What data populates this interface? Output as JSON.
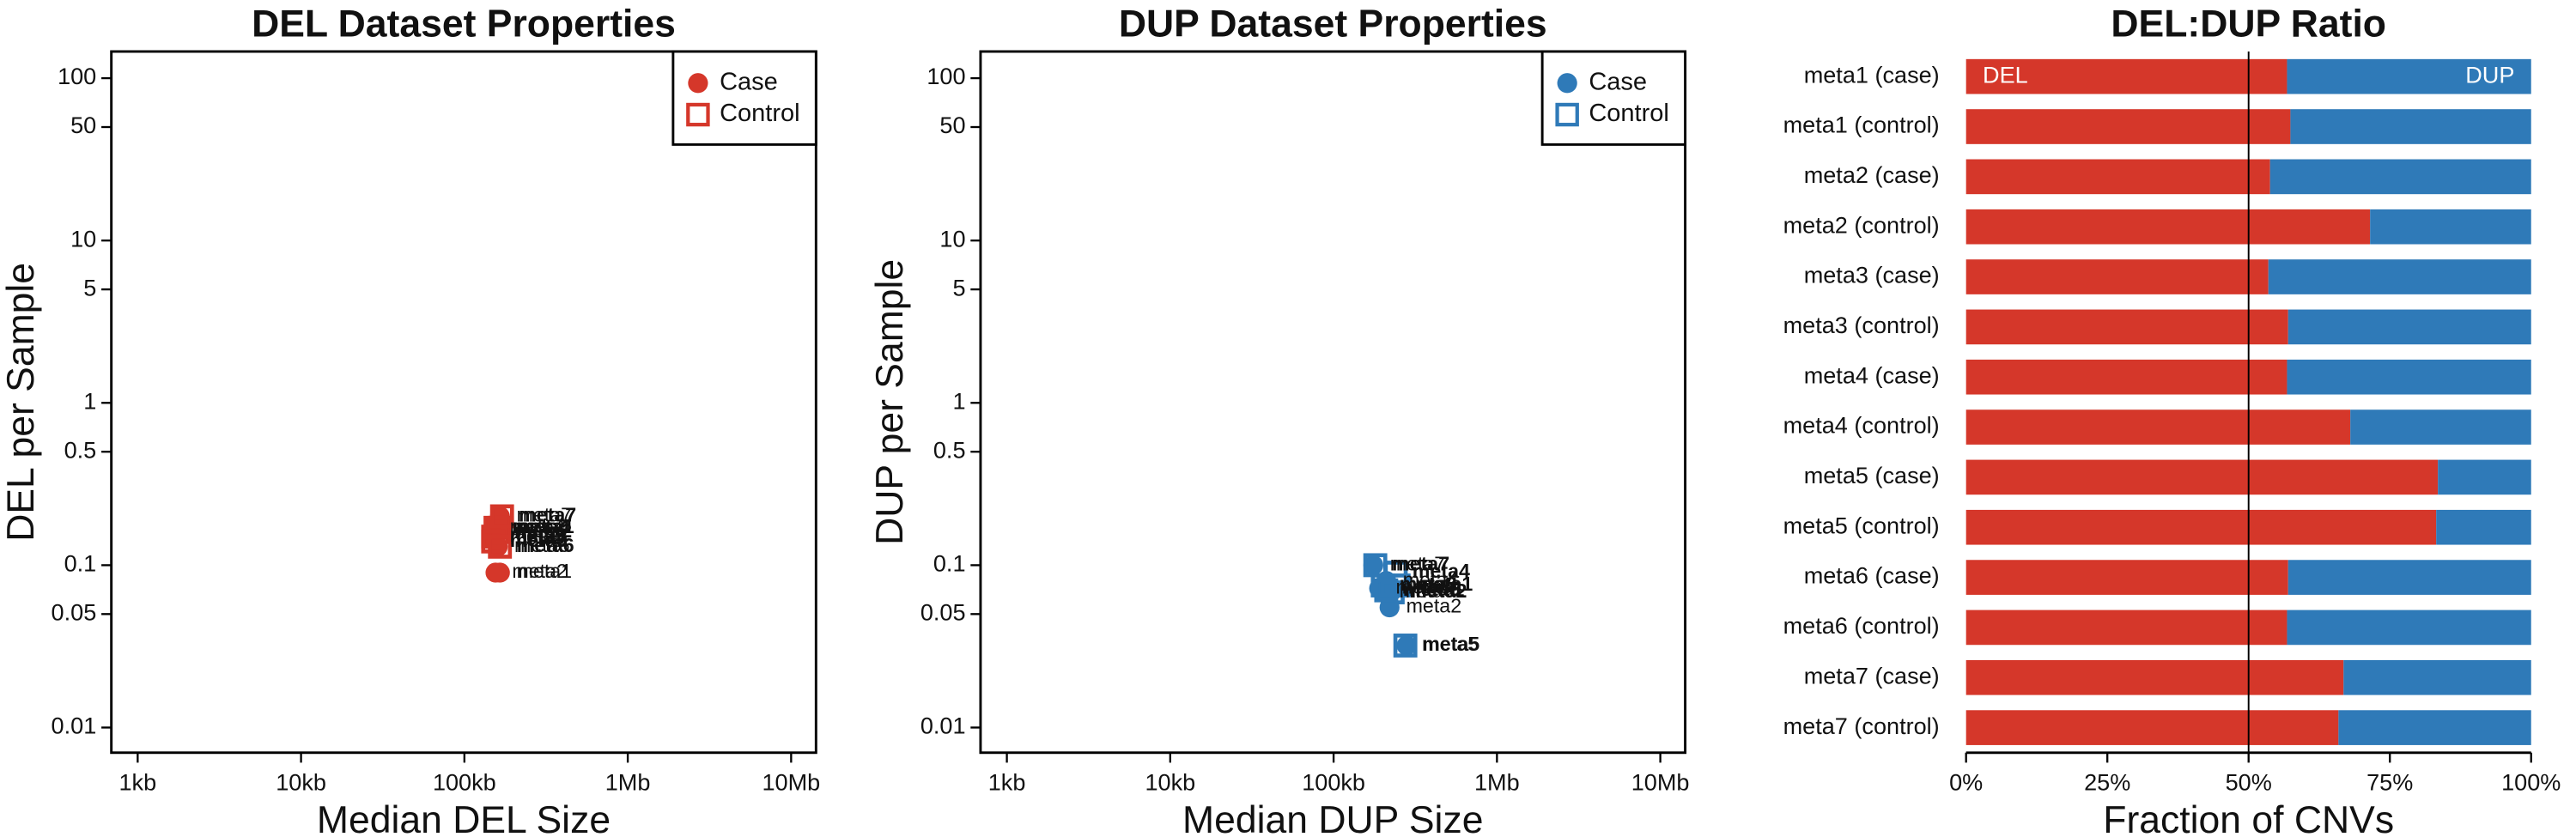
{
  "chart_data": [
    {
      "type": "scatter",
      "title": "DEL Dataset Properties",
      "xlabel": "Median DEL Size",
      "ylabel": "DEL per Sample",
      "xscale": "log",
      "yscale": "log",
      "xlim": [
        690,
        14200000
      ],
      "ylim": [
        0.007,
        146
      ],
      "xticks": [
        {
          "value": 1000,
          "label": "1kb"
        },
        {
          "value": 10000,
          "label": "10kb"
        },
        {
          "value": 100000,
          "label": "100kb"
        },
        {
          "value": 1000000,
          "label": "1Mb"
        },
        {
          "value": 10000000,
          "label": "10Mb"
        }
      ],
      "yticks": [
        0.01,
        0.05,
        0.1,
        0.5,
        1,
        5,
        10,
        50,
        100
      ],
      "legend": "upper right",
      "series": [
        {
          "name": "Case",
          "marker": "circle",
          "color": "#d5372a",
          "labels": [
            "meta1",
            "meta2",
            "meta3",
            "meta4",
            "meta5",
            "meta6",
            "meta7"
          ],
          "x": [
            165000,
            155000,
            150000,
            150000,
            150000,
            160000,
            165000
          ],
          "values": [
            0.09,
            0.09,
            0.15,
            0.17,
            0.145,
            0.13,
            0.2
          ]
        },
        {
          "name": "Control",
          "marker": "square",
          "color": "#d5372a",
          "labels": [
            "meta1",
            "meta2",
            "meta3",
            "meta4",
            "meta5",
            "meta6",
            "meta7"
          ],
          "x": [
            165000,
            160000,
            150000,
            155000,
            150000,
            165000,
            170000
          ],
          "values": [
            0.17,
            0.16,
            0.15,
            0.17,
            0.14,
            0.13,
            0.2
          ]
        }
      ]
    },
    {
      "type": "scatter",
      "title": "DUP Dataset Properties",
      "xlabel": "Median DUP Size",
      "ylabel": "DUP per Sample",
      "xscale": "log",
      "yscale": "log",
      "xlim": [
        690,
        14200000
      ],
      "ylim": [
        0.007,
        146
      ],
      "xticks": [
        {
          "value": 1000,
          "label": "1kb"
        },
        {
          "value": 10000,
          "label": "10kb"
        },
        {
          "value": 100000,
          "label": "100kb"
        },
        {
          "value": 1000000,
          "label": "1Mb"
        },
        {
          "value": 10000000,
          "label": "10Mb"
        }
      ],
      "yticks": [
        0.01,
        0.05,
        0.1,
        0.5,
        1,
        5,
        10,
        50,
        100
      ],
      "legend": "upper right",
      "series": [
        {
          "name": "Case",
          "marker": "circle",
          "color": "#2f7ab8",
          "labels": [
            "meta1",
            "meta2",
            "meta3",
            "meta4",
            "meta5",
            "meta6",
            "meta7"
          ],
          "x": [
            230000,
            220000,
            190000,
            210000,
            280000,
            200000,
            175000
          ],
          "values": [
            0.07,
            0.055,
            0.072,
            0.08,
            0.032,
            0.068,
            0.1
          ]
        },
        {
          "name": "Control",
          "marker": "square",
          "color": "#2f7ab8",
          "labels": [
            "meta1",
            "meta2",
            "meta3",
            "meta4",
            "meta5",
            "meta6",
            "meta7"
          ],
          "x": [
            250000,
            230000,
            200000,
            240000,
            275000,
            210000,
            180000
          ],
          "values": [
            0.075,
            0.068,
            0.075,
            0.09,
            0.032,
            0.07,
            0.1
          ]
        }
      ]
    },
    {
      "type": "stacked_barh",
      "title": "DEL:DUP Ratio",
      "xlabel": "Fraction of CNVs",
      "categories": [
        "meta1 (case)",
        "meta1 (control)",
        "meta2 (case)",
        "meta2 (control)",
        "meta3 (case)",
        "meta3 (control)",
        "meta4 (case)",
        "meta4 (control)",
        "meta5 (case)",
        "meta5 (control)",
        "meta6 (case)",
        "meta6 (control)",
        "meta7 (case)",
        "meta7 (control)"
      ],
      "xlim": [
        0,
        100
      ],
      "xticks": [
        {
          "value": 0,
          "label": "0%"
        },
        {
          "value": 25,
          "label": "25%"
        },
        {
          "value": 50,
          "label": "50%"
        },
        {
          "value": 75,
          "label": "75%"
        },
        {
          "value": 100,
          "label": "100%"
        }
      ],
      "vline": 50,
      "series": [
        {
          "name": "DEL",
          "color": "#d5372a",
          "values": [
            56.8,
            57.4,
            53.8,
            71.5,
            53.5,
            57,
            56.8,
            68,
            83.5,
            83.2,
            57,
            56.8,
            66.8,
            65.9
          ]
        },
        {
          "name": "DUP",
          "color": "#2f7ab8",
          "values": [
            43.2,
            42.6,
            46.2,
            28.5,
            46.5,
            43,
            43.2,
            32,
            16.5,
            16.8,
            43,
            43.2,
            33.2,
            34.1
          ]
        }
      ]
    }
  ]
}
